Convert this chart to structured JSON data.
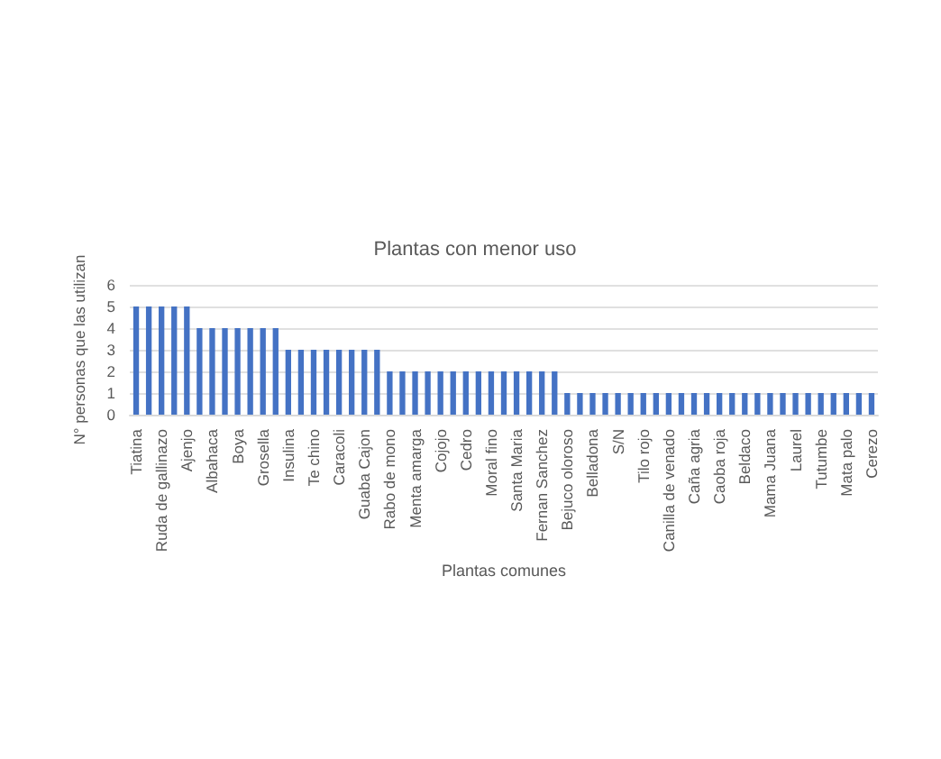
{
  "chart_data": {
    "type": "bar",
    "title": "Plantas con menor uso",
    "xlabel": "Plantas comunes",
    "ylabel": "N° personas que las utilizan",
    "categories": [
      "Tiatina",
      null,
      "Ruda de gallinazo",
      null,
      "Ajenjo",
      null,
      "Albahaca",
      null,
      "Boya",
      null,
      "Grosella",
      null,
      "Insulina",
      null,
      "Te chino",
      null,
      "Caracoli",
      null,
      "Guaba Cajon",
      null,
      "Rabo de mono",
      null,
      "Menta amarga",
      null,
      "Cojojo",
      null,
      "Cedro",
      null,
      "Moral fino",
      null,
      "Santa Maria",
      null,
      "Fernan Sanchez",
      null,
      "Bejuco oloroso",
      null,
      "Belladona",
      null,
      "S/N",
      null,
      "Tilo rojo",
      null,
      "Canilla de venado",
      null,
      "Caña agria",
      null,
      "Caoba roja",
      null,
      "Beldaco",
      null,
      "Mama Juana",
      null,
      "Laurel",
      null,
      "Tutumbe",
      null,
      "Mata palo",
      null,
      "Cerezo"
    ],
    "values": [
      5,
      5,
      5,
      5,
      5,
      4,
      4,
      4,
      4,
      4,
      4,
      4,
      3,
      3,
      3,
      3,
      3,
      3,
      3,
      3,
      2,
      2,
      2,
      2,
      2,
      2,
      2,
      2,
      2,
      2,
      2,
      2,
      2,
      2,
      1,
      1,
      1,
      1,
      1,
      1,
      1,
      1,
      1,
      1,
      1,
      1,
      1,
      1,
      1,
      1,
      1,
      1,
      1,
      1,
      1,
      1,
      1,
      1,
      1
    ],
    "color": "#4472c4",
    "ylim": [
      0,
      6
    ],
    "yticks": [
      0,
      1,
      2,
      3,
      4,
      5,
      6
    ],
    "grid": "y"
  }
}
